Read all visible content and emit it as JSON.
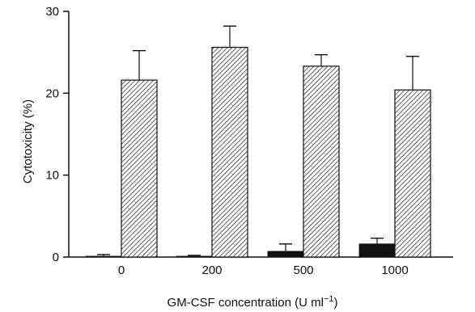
{
  "chart_data": {
    "type": "bar",
    "categories": [
      "0",
      "200",
      "500",
      "1000"
    ],
    "series": [
      {
        "values": [
          0.1,
          0.1,
          0.7,
          1.6
        ],
        "errors": [
          0.2,
          0.1,
          0.9,
          0.7
        ],
        "fill": "#111111"
      },
      {
        "values": [
          21.6,
          25.6,
          23.3,
          20.4
        ],
        "errors": [
          3.6,
          2.6,
          1.4,
          4.1
        ],
        "fill": "hatched"
      }
    ],
    "xlabel_main": "GM-CSF concentration (U ml",
    "xlabel_sup": "−1",
    "xlabel_close": ")",
    "ylabel": "Cytotoxicity (%)",
    "ylim": [
      0,
      30
    ],
    "yticks": [
      "0",
      "10",
      "20",
      "30"
    ],
    "grid": false,
    "legend": false
  }
}
